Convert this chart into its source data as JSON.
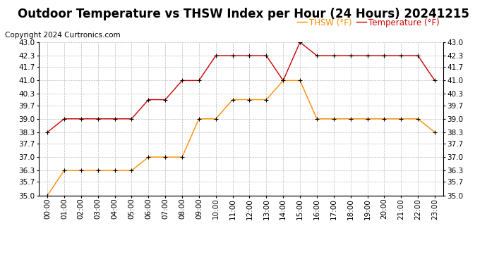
{
  "title": "Outdoor Temperature vs THSW Index per Hour (24 Hours) 20241215",
  "copyright": "Copyright 2024 Curtronics.com",
  "legend_thsw": "THSW (°F)",
  "legend_temp": "Temperature (°F)",
  "hours": [
    0,
    1,
    2,
    3,
    4,
    5,
    6,
    7,
    8,
    9,
    10,
    11,
    12,
    13,
    14,
    15,
    16,
    17,
    18,
    19,
    20,
    21,
    22,
    23
  ],
  "temperature": [
    38.3,
    39.0,
    39.0,
    39.0,
    39.0,
    39.0,
    40.0,
    40.0,
    41.0,
    41.0,
    42.3,
    42.3,
    42.3,
    42.3,
    41.0,
    43.0,
    42.3,
    42.3,
    42.3,
    42.3,
    42.3,
    42.3,
    42.3,
    41.0
  ],
  "thsw": [
    35.0,
    36.3,
    36.3,
    36.3,
    36.3,
    36.3,
    37.0,
    37.0,
    37.0,
    39.0,
    39.0,
    40.0,
    40.0,
    40.0,
    41.0,
    41.0,
    39.0,
    39.0,
    39.0,
    39.0,
    39.0,
    39.0,
    39.0,
    38.3
  ],
  "temp_color": "#cc0000",
  "thsw_color": "#ff8c00",
  "marker_color": "#000000",
  "ylim_min": 35.0,
  "ylim_max": 43.0,
  "yticks": [
    35.0,
    35.7,
    36.3,
    37.0,
    37.7,
    38.3,
    39.0,
    39.7,
    40.3,
    41.0,
    41.7,
    42.3,
    43.0
  ],
  "background_color": "#ffffff",
  "grid_color": "#bbbbbb",
  "title_fontsize": 12,
  "copyright_fontsize": 7.5,
  "tick_fontsize": 7.5,
  "legend_fontsize": 8.5
}
